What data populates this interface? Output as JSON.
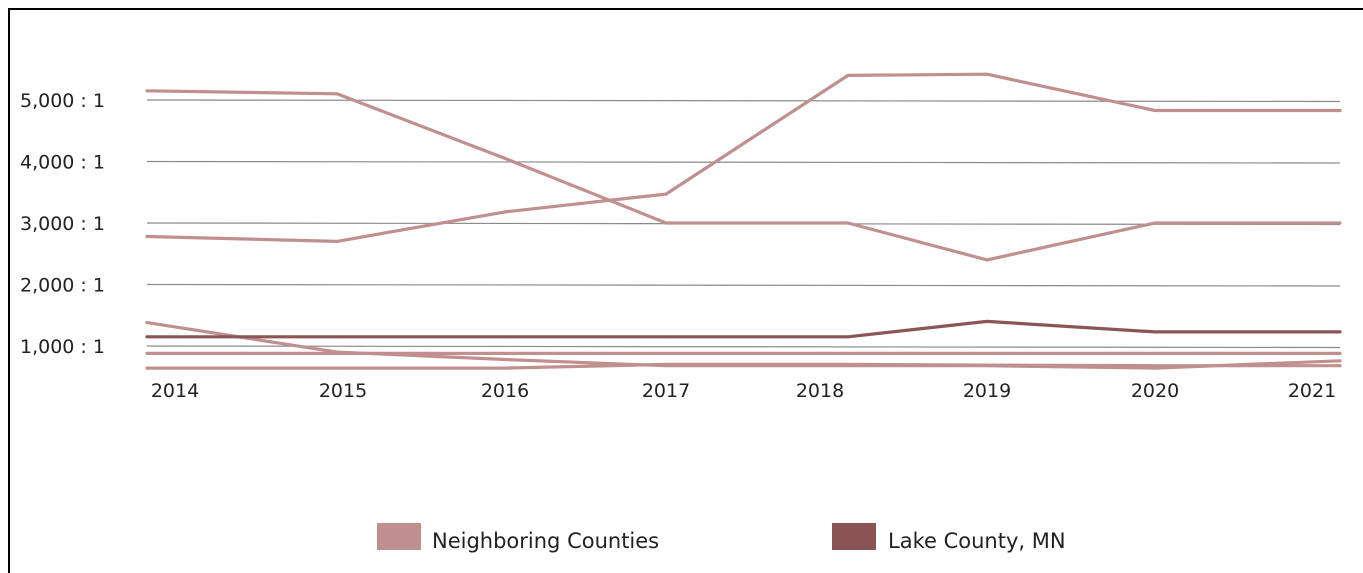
{
  "chart_data": {
    "type": "line",
    "title": "",
    "xlabel": "",
    "ylabel": "",
    "x": [
      "2014",
      "2015",
      "2016",
      "2017",
      "2018",
      "2019",
      "2020",
      "2021"
    ],
    "y_ticks": [
      {
        "value": 1000,
        "label": "1,000 : 1"
      },
      {
        "value": 2000,
        "label": "2,000 : 1"
      },
      {
        "value": 3000,
        "label": "3,000 : 1"
      },
      {
        "value": 4000,
        "label": "4,000 : 1"
      },
      {
        "value": 5000,
        "label": "5,000 : 1"
      }
    ],
    "ylim": [
      580,
      5700
    ],
    "grid": true,
    "legend_position": "bottom",
    "series": [
      {
        "name": "Neighboring Counties",
        "group": "neighbor",
        "color": "#c09090",
        "values": [
          5150,
          5100,
          4050,
          3000,
          3000,
          2400,
          3000,
          3000
        ]
      },
      {
        "name": "Neighboring Counties",
        "group": "neighbor",
        "color": "#c09090",
        "values": [
          2780,
          2700,
          3180,
          3470,
          5400,
          5420,
          4830,
          4830
        ]
      },
      {
        "name": "Neighboring Counties",
        "group": "neighbor",
        "color": "#c09090",
        "values": [
          1380,
          900,
          780,
          680,
          680,
          680,
          640,
          760
        ]
      },
      {
        "name": "Neighboring Counties",
        "group": "neighbor",
        "color": "#c09090",
        "values": [
          880,
          880,
          880,
          880,
          880,
          880,
          880,
          880
        ]
      },
      {
        "name": "Neighboring Counties",
        "group": "neighbor",
        "color": "#c09090",
        "values": [
          640,
          640,
          640,
          700,
          700,
          690,
          680,
          680
        ]
      },
      {
        "name": "Lake County, MN",
        "group": "lake",
        "color": "#8b5555",
        "values": [
          1150,
          1150,
          1150,
          1150,
          1150,
          1400,
          1230,
          1230
        ]
      }
    ],
    "legend": [
      {
        "label": "Neighboring Counties",
        "color": "#c09090"
      },
      {
        "label": "Lake County, MN",
        "color": "#8b5555"
      }
    ]
  }
}
